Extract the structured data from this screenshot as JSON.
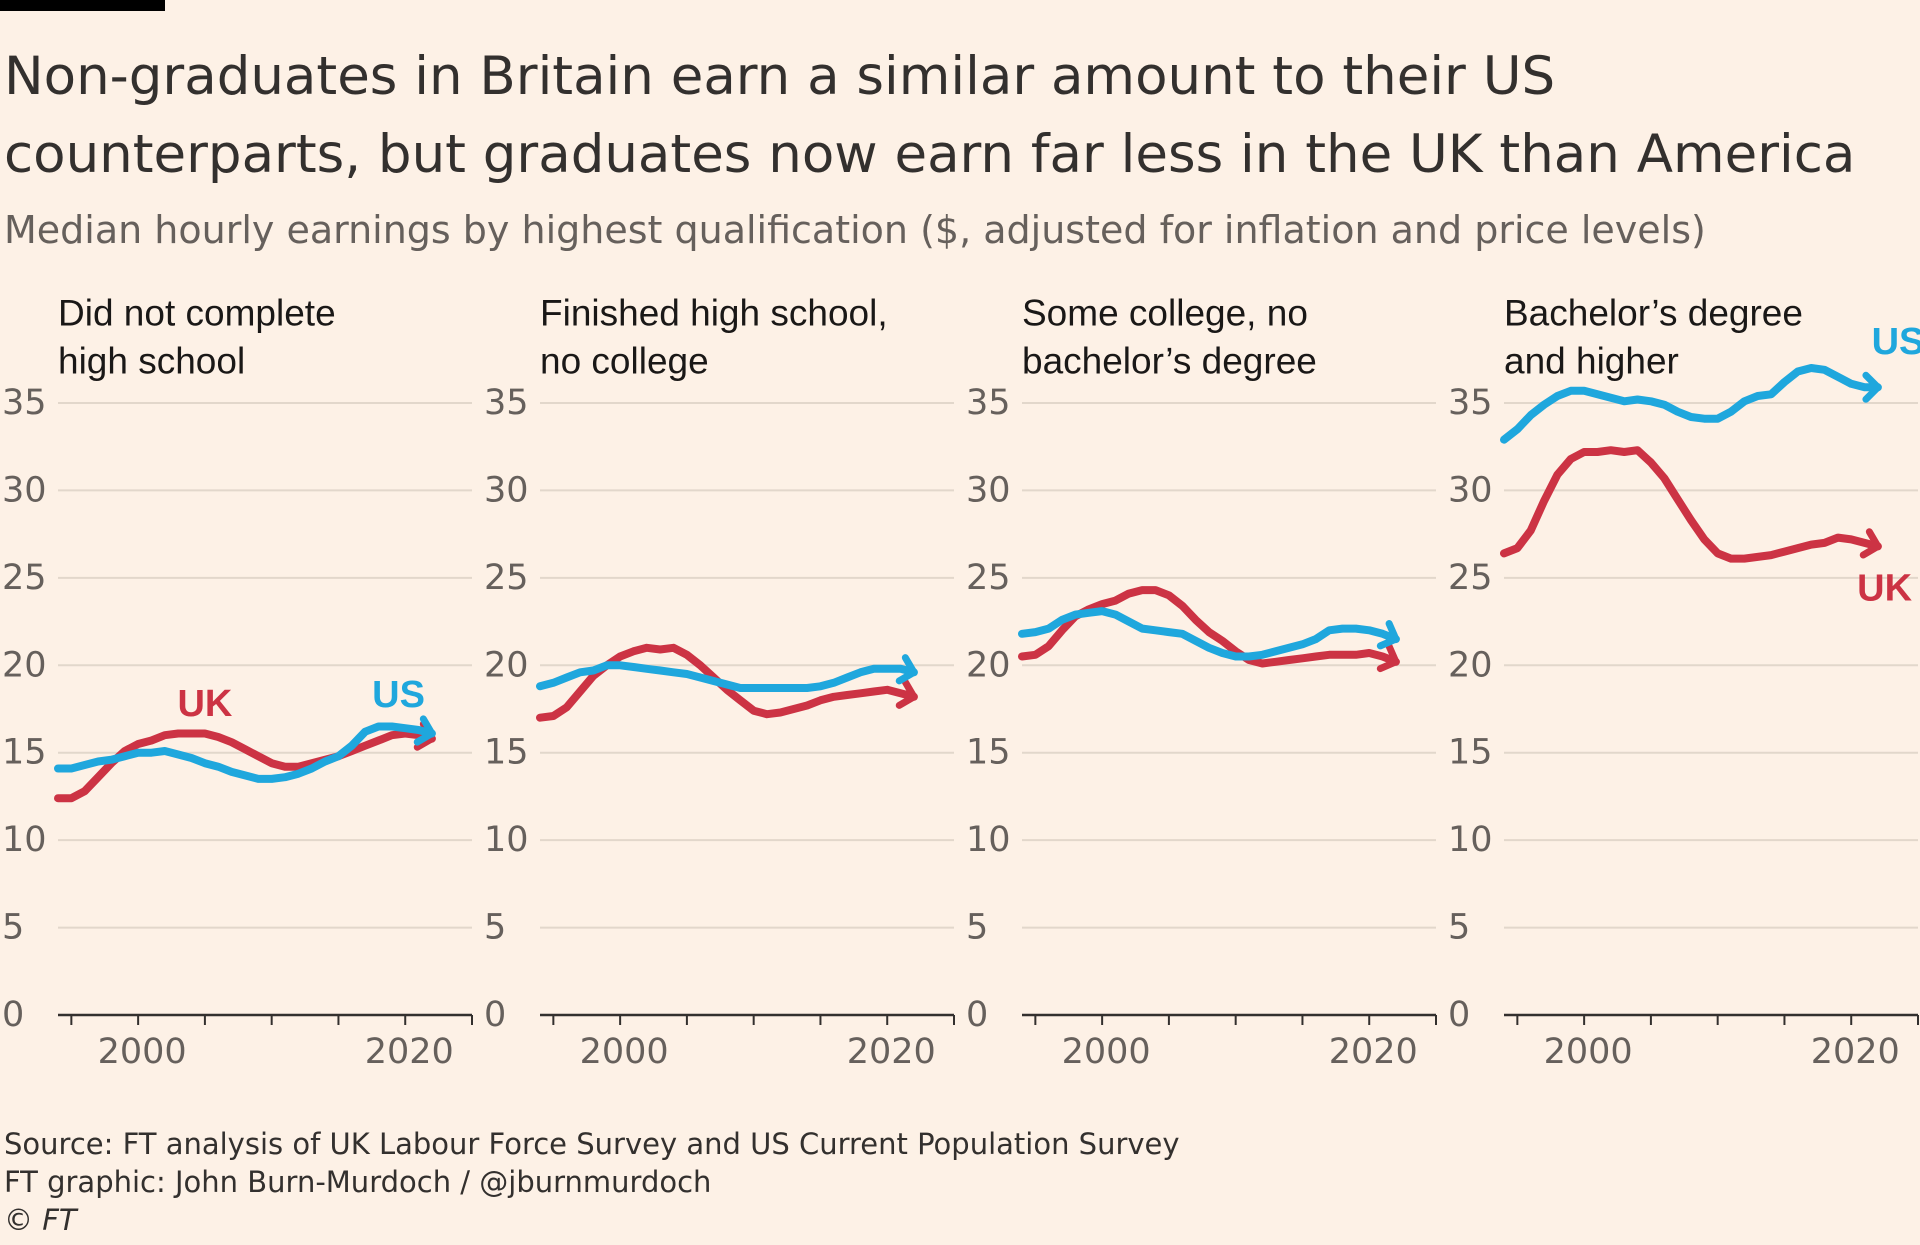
{
  "title": "Non-graduates in Britain earn a similar amount to their US counterparts, but graduates now earn far less in the UK than America",
  "subtitle": "Median hourly earnings by highest qualification ($, adjusted for inflation and price levels)",
  "footer": {
    "source": "Source: FT analysis of UK Labour Force Survey and US Current Population Survey",
    "graphic": "FT graphic: John Burn-Murdoch / @jburnmurdoch",
    "copyright": "© FT"
  },
  "colors": {
    "background": "#fdf1e6",
    "uk": "#cc3344",
    "us": "#1fa7dd",
    "grid": "#e2d7cb",
    "axis": "#33302e"
  },
  "chart_data": [
    {
      "type": "line",
      "panel_title": [
        "Did not complete",
        "high school"
      ],
      "x_tick_labels": [
        "2000",
        "2020"
      ],
      "y_ticks": [
        "0",
        "5",
        "10",
        "15",
        "20",
        "25",
        "30",
        "35"
      ],
      "ylim": [
        0,
        35
      ],
      "xlim": [
        1994,
        2025
      ],
      "series_labels": [
        {
          "name": "UK",
          "x": 2005,
          "y": 17.8
        },
        {
          "name": "US",
          "x": 2019.5,
          "y": 18.3
        }
      ],
      "series": [
        {
          "name": "UK",
          "x": [
            1994,
            1995,
            1996,
            1997,
            1998,
            1999,
            2000,
            2001,
            2002,
            2003,
            2004,
            2005,
            2006,
            2007,
            2008,
            2009,
            2010,
            2011,
            2012,
            2013,
            2014,
            2015,
            2016,
            2017,
            2018,
            2019,
            2020,
            2021,
            2022
          ],
          "values": [
            12.4,
            12.4,
            12.8,
            13.6,
            14.4,
            15.1,
            15.5,
            15.7,
            16.0,
            16.1,
            16.1,
            16.1,
            15.9,
            15.6,
            15.2,
            14.8,
            14.4,
            14.2,
            14.2,
            14.4,
            14.6,
            14.8,
            15.1,
            15.4,
            15.7,
            16.0,
            16.1,
            16.0,
            15.8
          ]
        },
        {
          "name": "US",
          "x": [
            1994,
            1995,
            1996,
            1997,
            1998,
            1999,
            2000,
            2001,
            2002,
            2003,
            2004,
            2005,
            2006,
            2007,
            2008,
            2009,
            2010,
            2011,
            2012,
            2013,
            2014,
            2015,
            2016,
            2017,
            2018,
            2019,
            2020,
            2021,
            2022
          ],
          "values": [
            14.1,
            14.1,
            14.3,
            14.5,
            14.6,
            14.8,
            15.0,
            15.0,
            15.1,
            14.9,
            14.7,
            14.4,
            14.2,
            13.9,
            13.7,
            13.5,
            13.5,
            13.6,
            13.8,
            14.1,
            14.5,
            14.8,
            15.4,
            16.2,
            16.5,
            16.5,
            16.4,
            16.3,
            16.1
          ]
        }
      ]
    },
    {
      "type": "line",
      "panel_title": [
        "Finished high school,",
        "no college"
      ],
      "x_tick_labels": [
        "2000",
        "2020"
      ],
      "y_ticks": [
        "0",
        "5",
        "10",
        "15",
        "20",
        "25",
        "30",
        "35"
      ],
      "ylim": [
        0,
        35
      ],
      "xlim": [
        1994,
        2025
      ],
      "series_labels": [],
      "series": [
        {
          "name": "UK",
          "x": [
            1994,
            1995,
            1996,
            1997,
            1998,
            1999,
            2000,
            2001,
            2002,
            2003,
            2004,
            2005,
            2006,
            2007,
            2008,
            2009,
            2010,
            2011,
            2012,
            2013,
            2014,
            2015,
            2016,
            2017,
            2018,
            2019,
            2020,
            2021,
            2022
          ],
          "values": [
            17.0,
            17.1,
            17.6,
            18.5,
            19.4,
            20.0,
            20.5,
            20.8,
            21.0,
            20.9,
            21.0,
            20.6,
            20.0,
            19.3,
            18.6,
            18.0,
            17.4,
            17.2,
            17.3,
            17.5,
            17.7,
            18.0,
            18.2,
            18.3,
            18.4,
            18.5,
            18.6,
            18.4,
            18.2
          ]
        },
        {
          "name": "US",
          "x": [
            1994,
            1995,
            1996,
            1997,
            1998,
            1999,
            2000,
            2001,
            2002,
            2003,
            2004,
            2005,
            2006,
            2007,
            2008,
            2009,
            2010,
            2011,
            2012,
            2013,
            2014,
            2015,
            2016,
            2017,
            2018,
            2019,
            2020,
            2021,
            2022
          ],
          "values": [
            18.8,
            19.0,
            19.3,
            19.6,
            19.7,
            20.0,
            20.0,
            19.9,
            19.8,
            19.7,
            19.6,
            19.5,
            19.3,
            19.1,
            18.9,
            18.7,
            18.7,
            18.7,
            18.7,
            18.7,
            18.7,
            18.8,
            19.0,
            19.3,
            19.6,
            19.8,
            19.8,
            19.8,
            19.6
          ]
        }
      ]
    },
    {
      "type": "line",
      "panel_title": [
        "Some college, no",
        "bachelor’s degree"
      ],
      "x_tick_labels": [
        "2000",
        "2020"
      ],
      "y_ticks": [
        "0",
        "5",
        "10",
        "15",
        "20",
        "25",
        "30",
        "35"
      ],
      "ylim": [
        0,
        35
      ],
      "xlim": [
        1994,
        2025
      ],
      "series_labels": [],
      "series": [
        {
          "name": "UK",
          "x": [
            1994,
            1995,
            1996,
            1997,
            1998,
            1999,
            2000,
            2001,
            2002,
            2003,
            2004,
            2005,
            2006,
            2007,
            2008,
            2009,
            2010,
            2011,
            2012,
            2013,
            2014,
            2015,
            2016,
            2017,
            2018,
            2019,
            2020,
            2021,
            2022
          ],
          "values": [
            20.5,
            20.6,
            21.1,
            22.0,
            22.8,
            23.2,
            23.5,
            23.7,
            24.1,
            24.3,
            24.3,
            24.0,
            23.4,
            22.6,
            21.9,
            21.4,
            20.8,
            20.3,
            20.1,
            20.2,
            20.3,
            20.4,
            20.5,
            20.6,
            20.6,
            20.6,
            20.7,
            20.5,
            20.2
          ]
        },
        {
          "name": "US",
          "x": [
            1994,
            1995,
            1996,
            1997,
            1998,
            1999,
            2000,
            2001,
            2002,
            2003,
            2004,
            2005,
            2006,
            2007,
            2008,
            2009,
            2010,
            2011,
            2012,
            2013,
            2014,
            2015,
            2016,
            2017,
            2018,
            2019,
            2020,
            2021,
            2022
          ],
          "values": [
            21.8,
            21.9,
            22.1,
            22.6,
            22.9,
            23.0,
            23.1,
            22.9,
            22.5,
            22.1,
            22.0,
            21.9,
            21.8,
            21.4,
            21.0,
            20.7,
            20.5,
            20.5,
            20.6,
            20.8,
            21.0,
            21.2,
            21.5,
            22.0,
            22.1,
            22.1,
            22.0,
            21.8,
            21.5
          ]
        }
      ]
    },
    {
      "type": "line",
      "panel_title": [
        "Bachelor’s degree",
        "and higher"
      ],
      "x_tick_labels": [
        "2000",
        "2020"
      ],
      "y_ticks": [
        "0",
        "5",
        "10",
        "15",
        "20",
        "25",
        "30",
        "35"
      ],
      "ylim": [
        0,
        35
      ],
      "xlim": [
        1994,
        2025
      ],
      "series_labels": [
        {
          "name": "US",
          "x": 2023.5,
          "y": 38.5
        },
        {
          "name": "UK",
          "x": 2022.5,
          "y": 24.4
        }
      ],
      "series": [
        {
          "name": "UK",
          "x": [
            1994,
            1995,
            1996,
            1997,
            1998,
            1999,
            2000,
            2001,
            2002,
            2003,
            2004,
            2005,
            2006,
            2007,
            2008,
            2009,
            2010,
            2011,
            2012,
            2013,
            2014,
            2015,
            2016,
            2017,
            2018,
            2019,
            2020,
            2021,
            2022
          ],
          "values": [
            26.4,
            26.7,
            27.7,
            29.4,
            30.9,
            31.8,
            32.2,
            32.2,
            32.3,
            32.2,
            32.3,
            31.6,
            30.7,
            29.5,
            28.3,
            27.2,
            26.4,
            26.1,
            26.1,
            26.2,
            26.3,
            26.5,
            26.7,
            26.9,
            27.0,
            27.3,
            27.2,
            27.0,
            26.8
          ]
        },
        {
          "name": "US",
          "x": [
            1994,
            1995,
            1996,
            1997,
            1998,
            1999,
            2000,
            2001,
            2002,
            2003,
            2004,
            2005,
            2006,
            2007,
            2008,
            2009,
            2010,
            2011,
            2012,
            2013,
            2014,
            2015,
            2016,
            2017,
            2018,
            2019,
            2020,
            2021,
            2022
          ],
          "values": [
            32.9,
            33.5,
            34.3,
            34.9,
            35.4,
            35.7,
            35.7,
            35.5,
            35.3,
            35.1,
            35.2,
            35.1,
            34.9,
            34.5,
            34.2,
            34.1,
            34.1,
            34.5,
            35.1,
            35.4,
            35.5,
            36.2,
            36.8,
            37.0,
            36.9,
            36.5,
            36.1,
            35.9,
            35.9
          ]
        }
      ]
    }
  ]
}
